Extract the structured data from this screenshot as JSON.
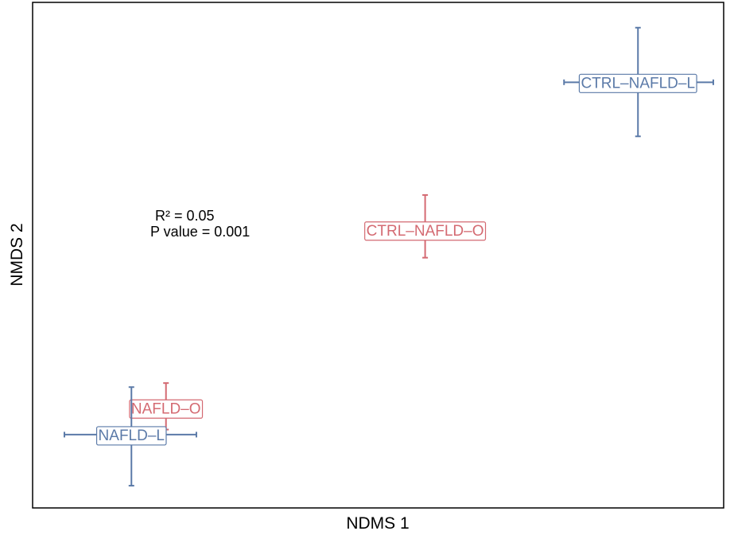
{
  "chart_data": {
    "type": "scatter",
    "title": "",
    "xlabel": "NDMS 1",
    "ylabel": "NMDS 2",
    "xlim": [
      0,
      100
    ],
    "ylim": [
      0,
      100
    ],
    "grid": false,
    "legend": "none",
    "annotation": {
      "r_squared_text": "R² = 0.05",
      "p_value_text": "P value =  0.001"
    },
    "groups": [
      {
        "label": "CTRL–NAFLD–L",
        "color": "#5b7aa8",
        "x": 87.6,
        "y": 84.2,
        "x_err": [
          76.9,
          98.5
        ],
        "y_err": [
          73.5,
          95.0
        ]
      },
      {
        "label": "CTRL–NAFLD–O",
        "color": "#d46a72",
        "x": 56.8,
        "y": 55.0,
        "x_err": [
          52.0,
          61.0
        ],
        "y_err": [
          49.5,
          61.9
        ]
      },
      {
        "label": "NAFLD–O",
        "color": "#d46a72",
        "x": 19.3,
        "y": 19.8,
        "x_err": [
          17.0,
          22.0
        ],
        "y_err": [
          15.5,
          24.7
        ]
      },
      {
        "label": "NAFLD–L",
        "color": "#5b7aa8",
        "x": 14.3,
        "y": 14.5,
        "x_err": [
          4.6,
          23.7
        ],
        "y_err": [
          4.4,
          23.9
        ]
      }
    ]
  }
}
